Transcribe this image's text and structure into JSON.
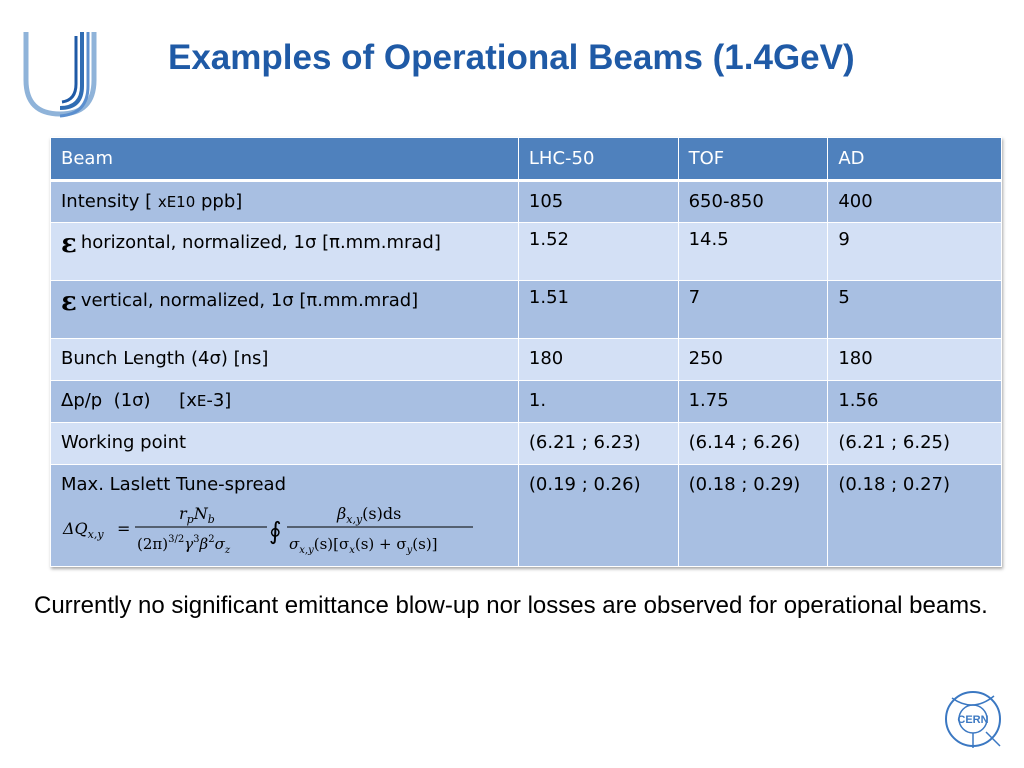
{
  "title": "Examples of Operational Beams (1.4GeV)",
  "table": {
    "headers": [
      "Beam",
      "LHC-50",
      "TOF",
      "AD"
    ],
    "rows": [
      {
        "label_main": "Intensity [ ",
        "label_small": "xE10",
        "label_tail": "  ppb]",
        "values": [
          "105",
          "650-850",
          "400"
        ]
      },
      {
        "eps": "ε",
        "label": "horizontal, normalized, 1σ [π.mm.mrad]",
        "values": [
          "1.52",
          "14.5",
          "9"
        ]
      },
      {
        "eps": "ε",
        "label": "vertical, normalized, 1σ  [π.mm.mrad]",
        "values": [
          "1.51",
          "7",
          "5"
        ]
      },
      {
        "label": "Bunch Length (4σ) [ns]",
        "values": [
          "180",
          "250",
          "180"
        ]
      },
      {
        "label_main": "Δp/p  (1σ)     [x",
        "label_small": "E",
        "label_tail": "-3]",
        "values": [
          "1.",
          "1.75",
          "1.56"
        ]
      },
      {
        "label": "Working point",
        "values": [
          "(6.21 ; 6.23)",
          "(6.14 ; 6.26)",
          "(6.21 ; 6.25)"
        ]
      },
      {
        "label": "Max. Laslett Tune-spread",
        "values": [
          "(0.19 ; 0.26)",
          "(0.18 ; 0.29)",
          "(0.18 ; 0.27)"
        ]
      }
    ],
    "formula": {
      "lhs": "ΔQ",
      "lhs_sub": "x,y",
      "equals": "=",
      "num1_a": "r",
      "num1_a_sub": "p",
      "num1_b": "N",
      "num1_b_sub": "b",
      "den1_a": "(2π)",
      "den1_a_sup": "3/2",
      "den1_b": "γ",
      "den1_b_sup": "3",
      "den1_c": "β",
      "den1_c_sup": "2",
      "den1_d": "σ",
      "den1_d_sub": "z",
      "integral": "∮",
      "num2_a": "β",
      "num2_a_sub": "x,y",
      "num2_b": "(s)ds",
      "den2": "σ",
      "den2_sub1": "x,y",
      "den2_mid": "(s)[σ",
      "den2_sub2": "x",
      "den2_mid2": "(s) + σ",
      "den2_sub3": "y",
      "den2_end": "(s)]"
    }
  },
  "footer": "Currently no significant emittance blow-up nor losses are observed for operational beams.",
  "logos": {
    "top_left": "university-logo",
    "bottom_right": "cern-logo",
    "cern_text": "CERN"
  },
  "colors": {
    "title": "#1f5aa6",
    "header_bg": "#4f81bd",
    "row_dark": "#a8bfe2",
    "row_light": "#d3e0f5"
  }
}
